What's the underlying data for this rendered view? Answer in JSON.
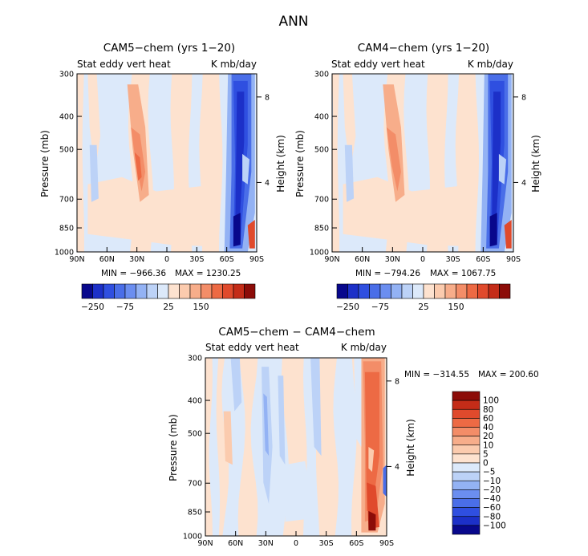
{
  "figure_title": "ANN",
  "colors": {
    "levels": [
      "#08088c",
      "#1c30c8",
      "#2f4fe0",
      "#4a6ee8",
      "#6b8ef0",
      "#93b2f4",
      "#bcd2f7",
      "#dce9fa",
      "#fde2cf",
      "#fbcbae",
      "#f7ad8a",
      "#f38d68",
      "#ed6a44",
      "#e04a2c",
      "#c42c18",
      "#8c0c08"
    ]
  },
  "chart_data": [
    {
      "type": "heatmap",
      "title": "CAM5−chem (yrs 1−20)",
      "left_label": "Stat eddy vert heat",
      "right_label": "K mb/day",
      "ylabel": "Pressure (mb)",
      "y2label": "Height (km)",
      "x_ticks": [
        "90N",
        "60N",
        "30N",
        "0",
        "30S",
        "60S",
        "90S"
      ],
      "y_ticks": [
        "300",
        "400",
        "500",
        "700",
        "850",
        "1000"
      ],
      "y2_ticks": [
        "8",
        "4"
      ],
      "min_label": "MIN = −966.36",
      "max_label": "MAX = 1230.25",
      "colorbar_ticks": [
        "−250",
        "−75",
        "25",
        "150"
      ],
      "ylim": [
        1000,
        300
      ],
      "y_scale": "log"
    },
    {
      "type": "heatmap",
      "title": "CAM4−chem (yrs 1−20)",
      "left_label": "Stat eddy vert heat",
      "right_label": "K mb/day",
      "ylabel": "Pressure (mb)",
      "y2label": "Height (km)",
      "x_ticks": [
        "90N",
        "60N",
        "30N",
        "0",
        "30S",
        "60S",
        "90S"
      ],
      "y_ticks": [
        "300",
        "400",
        "500",
        "700",
        "850",
        "1000"
      ],
      "y2_ticks": [
        "8",
        "4"
      ],
      "min_label": "MIN = −794.26",
      "max_label": "MAX = 1067.75",
      "colorbar_ticks": [
        "−250",
        "−75",
        "25",
        "150"
      ],
      "ylim": [
        1000,
        300
      ],
      "y_scale": "log"
    },
    {
      "type": "heatmap",
      "title": "CAM5−chem − CAM4−chem",
      "left_label": "Stat eddy vert heat",
      "right_label": "K mb/day",
      "ylabel": "Pressure (mb)",
      "y2label": "Height (km)",
      "x_ticks": [
        "90N",
        "60N",
        "30N",
        "0",
        "30S",
        "60S",
        "90S"
      ],
      "y_ticks": [
        "300",
        "400",
        "500",
        "700",
        "850",
        "1000"
      ],
      "y2_ticks": [
        "8",
        "4"
      ],
      "min_label": "MIN = −314.55",
      "max_label": "MAX = 200.60",
      "colorbar_ticks": [
        "100",
        "80",
        "60",
        "40",
        "20",
        "10",
        "5",
        "0",
        "−5",
        "−10",
        "−20",
        "−40",
        "−60",
        "−80",
        "−100"
      ],
      "ylim": [
        1000,
        300
      ],
      "y_scale": "log"
    }
  ]
}
